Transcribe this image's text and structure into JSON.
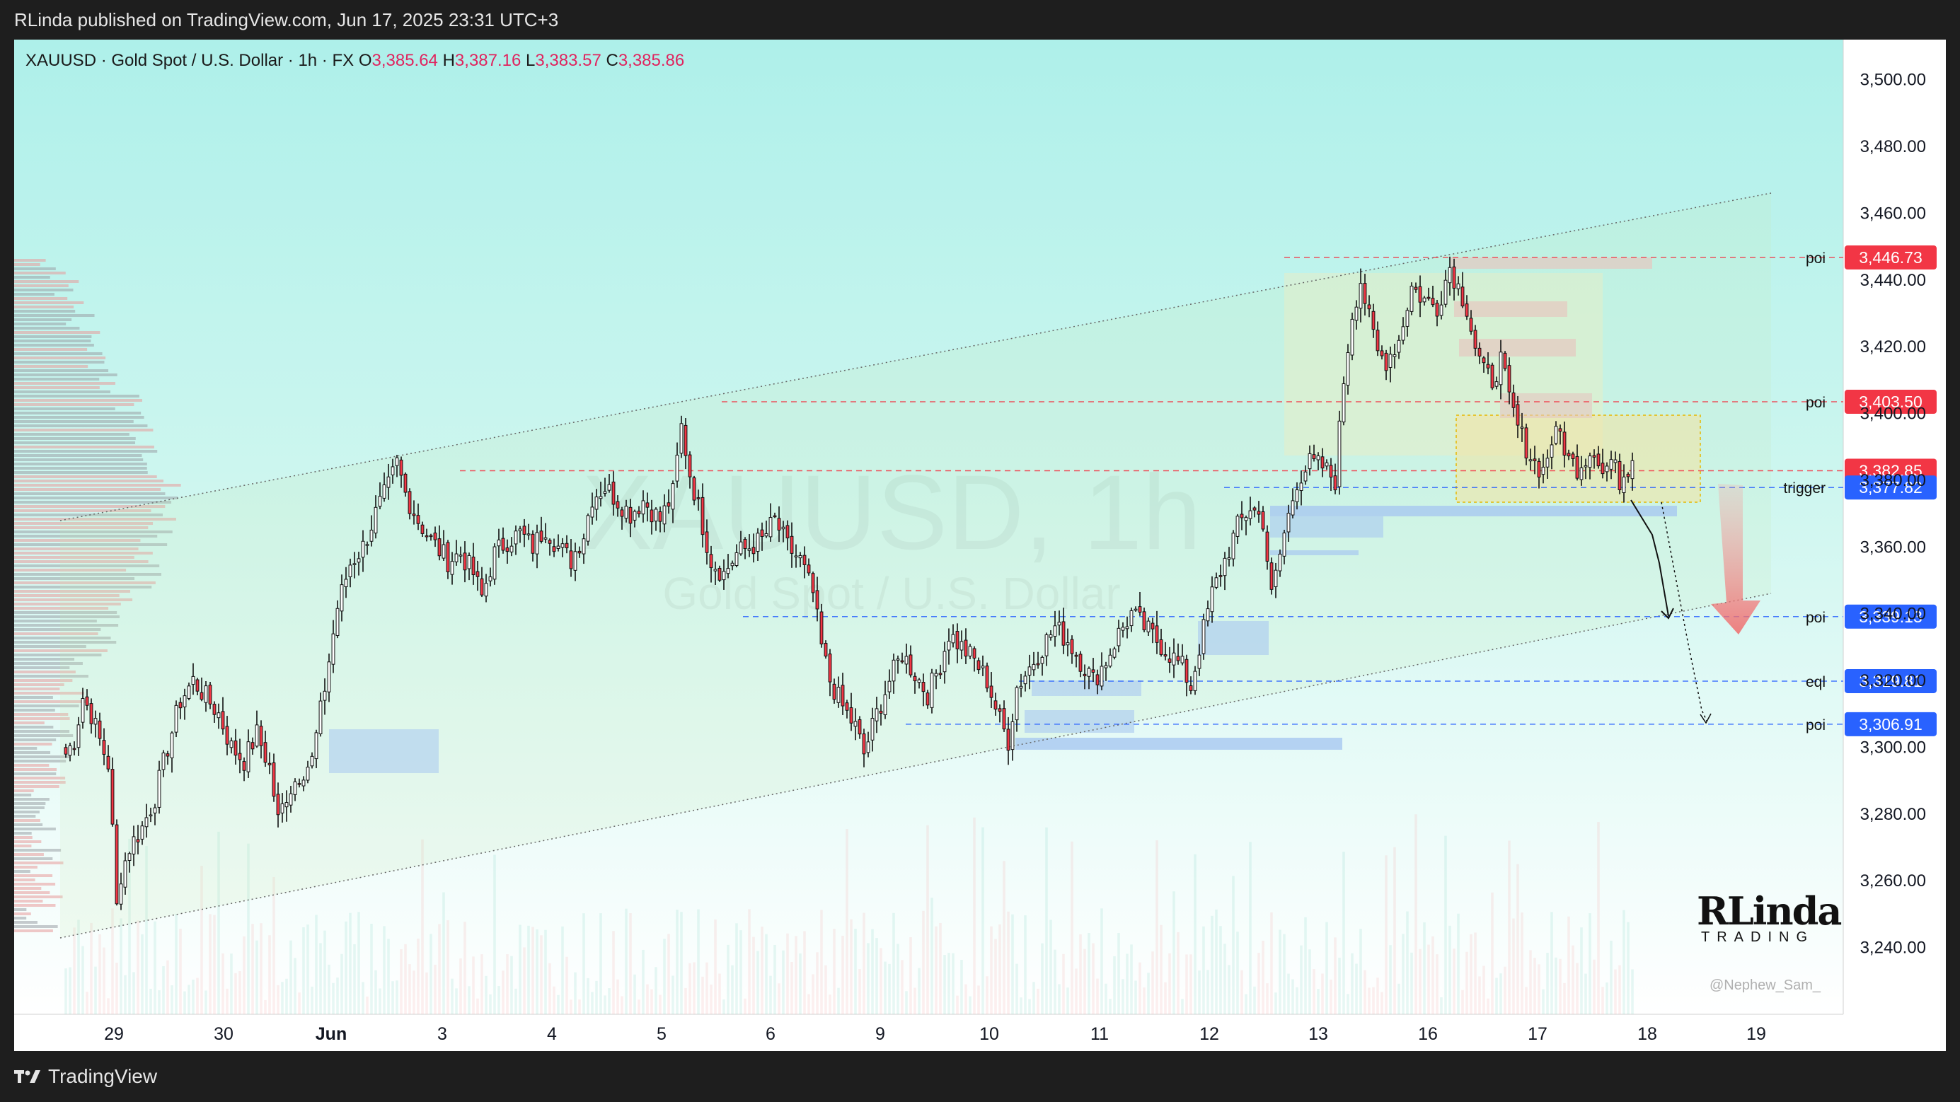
{
  "header": {
    "publisher_text": "RLinda published on TradingView.com, Jun 17, 2025 23:31 UTC+3"
  },
  "symbol": {
    "description": "XAUUSD · Gold Spot / U.S. Dollar · 1h · FX",
    "open_key": "O",
    "open": "3,385.64",
    "high_key": "H",
    "high": "3,387.16",
    "low_key": "L",
    "low": "3,383.57",
    "close_key": "C",
    "close": "3,385.86"
  },
  "watermark": {
    "symbol": "XAUUSD, 1h",
    "name": "Gold Spot / U.S. Dollar"
  },
  "branding": {
    "logo_big": "RLinda",
    "logo_small": "TRADING",
    "handle": "@Nephew_Sam_"
  },
  "footer": {
    "brand": "TradingView"
  },
  "colors": {
    "up": "#089981",
    "down": "#f23645",
    "candle_body_up": "#ffffff",
    "candle_body_down": "#f23645",
    "price_red": "#f23645",
    "price_blue": "#2962ff",
    "bg_top": "#aef0ea",
    "bg_bottom": "#ffffff",
    "axis_bg": "#ffffff"
  },
  "chart_data": {
    "type": "candlestick",
    "x_axis": {
      "labels": [
        "29",
        "30",
        "Jun",
        "3",
        "4",
        "5",
        "6",
        "9",
        "10",
        "11",
        "12",
        "13",
        "16",
        "17",
        "18",
        "19"
      ]
    },
    "y_axis": {
      "ticks": [
        "3,240.00",
        "3,260.00",
        "3,280.00",
        "3,300.00",
        "3,320.00",
        "3,340.00",
        "3,360.00",
        "3,380.00",
        "3,400.00",
        "3,420.00",
        "3,440.00",
        "3,460.00",
        "3,480.00",
        "3,500.00"
      ],
      "range": [
        3220,
        3512
      ]
    },
    "levels": [
      {
        "label": "poi",
        "price": "3,446.73",
        "value": 3446.73,
        "color": "red"
      },
      {
        "label": "poi",
        "price": "3,403.50",
        "value": 3403.5,
        "color": "red"
      },
      {
        "label": "",
        "price": "3,382.85",
        "value": 3382.85,
        "color": "red"
      },
      {
        "label": "trigger",
        "price": "3,377.82",
        "value": 3377.82,
        "color": "blue"
      },
      {
        "label": "poi",
        "price": "3,339.13",
        "value": 3339.13,
        "color": "blue"
      },
      {
        "label": "eql",
        "price": "3,319.81",
        "value": 3319.81,
        "color": "blue"
      },
      {
        "label": "poi",
        "price": "3,306.91",
        "value": 3306.91,
        "color": "blue"
      }
    ],
    "keypoints": [
      [
        0,
        3298
      ],
      [
        2,
        3302
      ],
      [
        4,
        3315
      ],
      [
        6,
        3310
      ],
      [
        8,
        3302
      ],
      [
        10,
        3295
      ],
      [
        11,
        3275
      ],
      [
        12,
        3252
      ],
      [
        13,
        3262
      ],
      [
        15,
        3270
      ],
      [
        18,
        3276
      ],
      [
        21,
        3285
      ],
      [
        24,
        3300
      ],
      [
        27,
        3314
      ],
      [
        30,
        3320
      ],
      [
        33,
        3315
      ],
      [
        36,
        3310
      ],
      [
        39,
        3300
      ],
      [
        42,
        3296
      ],
      [
        45,
        3304
      ],
      [
        48,
        3294
      ],
      [
        50,
        3278
      ],
      [
        52,
        3286
      ],
      [
        55,
        3292
      ],
      [
        58,
        3296
      ],
      [
        61,
        3318
      ],
      [
        64,
        3342
      ],
      [
        67,
        3355
      ],
      [
        70,
        3360
      ],
      [
        73,
        3370
      ],
      [
        76,
        3378
      ],
      [
        78,
        3385
      ],
      [
        80,
        3376
      ],
      [
        83,
        3368
      ],
      [
        86,
        3362
      ],
      [
        90,
        3356
      ],
      [
        93,
        3358
      ],
      [
        96,
        3352
      ],
      [
        98,
        3345
      ],
      [
        101,
        3358
      ],
      [
        104,
        3362
      ],
      [
        107,
        3364
      ],
      [
        110,
        3360
      ],
      [
        113,
        3366
      ],
      [
        116,
        3360
      ],
      [
        119,
        3356
      ],
      [
        122,
        3364
      ],
      [
        124,
        3375
      ],
      [
        127,
        3378
      ],
      [
        130,
        3374
      ],
      [
        133,
        3370
      ],
      [
        136,
        3374
      ],
      [
        140,
        3368
      ],
      [
        143,
        3376
      ],
      [
        145,
        3396
      ],
      [
        147,
        3382
      ],
      [
        149,
        3372
      ],
      [
        152,
        3356
      ],
      [
        155,
        3352
      ],
      [
        158,
        3358
      ],
      [
        161,
        3360
      ],
      [
        164,
        3362
      ],
      [
        167,
        3368
      ],
      [
        170,
        3360
      ],
      [
        173,
        3356
      ],
      [
        176,
        3346
      ],
      [
        178,
        3330
      ],
      [
        180,
        3320
      ],
      [
        183,
        3312
      ],
      [
        186,
        3306
      ],
      [
        188,
        3298
      ],
      [
        191,
        3310
      ],
      [
        194,
        3320
      ],
      [
        197,
        3328
      ],
      [
        200,
        3322
      ],
      [
        203,
        3316
      ],
      [
        206,
        3325
      ],
      [
        208,
        3334
      ],
      [
        211,
        3330
      ],
      [
        214,
        3326
      ],
      [
        217,
        3320
      ],
      [
        220,
        3308
      ],
      [
        222,
        3302
      ],
      [
        224,
        3318
      ],
      [
        227,
        3324
      ],
      [
        230,
        3330
      ],
      [
        233,
        3336
      ],
      [
        236,
        3332
      ],
      [
        239,
        3326
      ],
      [
        242,
        3320
      ],
      [
        245,
        3326
      ],
      [
        248,
        3334
      ],
      [
        251,
        3340
      ],
      [
        254,
        3336
      ],
      [
        257,
        3332
      ],
      [
        260,
        3328
      ],
      [
        263,
        3324
      ],
      [
        265,
        3318
      ],
      [
        267,
        3330
      ],
      [
        270,
        3346
      ],
      [
        273,
        3356
      ],
      [
        276,
        3366
      ],
      [
        279,
        3372
      ],
      [
        282,
        3368
      ],
      [
        284,
        3345
      ],
      [
        287,
        3364
      ],
      [
        290,
        3380
      ],
      [
        293,
        3385
      ],
      [
        296,
        3384
      ],
      [
        299,
        3380
      ],
      [
        301,
        3410
      ],
      [
        303,
        3430
      ],
      [
        305,
        3440
      ],
      [
        307,
        3428
      ],
      [
        309,
        3418
      ],
      [
        311,
        3416
      ],
      [
        314,
        3422
      ],
      [
        317,
        3438
      ],
      [
        320,
        3434
      ],
      [
        323,
        3432
      ],
      [
        326,
        3444
      ],
      [
        328,
        3438
      ],
      [
        330,
        3432
      ],
      [
        332,
        3420
      ],
      [
        334,
        3412
      ],
      [
        336,
        3410
      ],
      [
        338,
        3416
      ],
      [
        340,
        3404
      ],
      [
        342,
        3396
      ],
      [
        344,
        3390
      ],
      [
        346,
        3385
      ],
      [
        348,
        3383
      ],
      [
        350,
        3392
      ],
      [
        352,
        3394
      ],
      [
        354,
        3386
      ],
      [
        356,
        3384
      ],
      [
        358,
        3387
      ],
      [
        360,
        3390
      ],
      [
        362,
        3382
      ],
      [
        364,
        3386
      ],
      [
        366,
        3380
      ],
      [
        368,
        3384
      ],
      [
        369,
        3385.86
      ]
    ]
  }
}
